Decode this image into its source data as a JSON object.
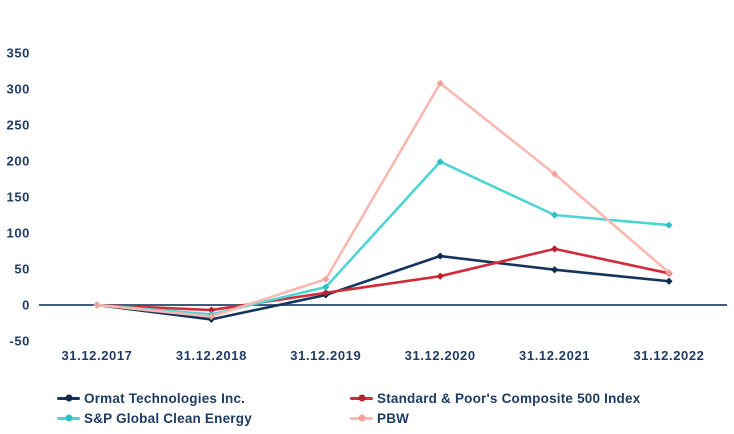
{
  "chart_data": {
    "type": "line",
    "title": "",
    "xlabel": "",
    "ylabel": "",
    "categories": [
      "31.12.2017",
      "31.12.2018",
      "31.12.2019",
      "31.12.2020",
      "31.12.2021",
      "31.12.2022"
    ],
    "y_ticks": [
      350,
      300,
      250,
      200,
      150,
      100,
      50,
      0,
      -50
    ],
    "ylim": [
      -50,
      350
    ],
    "grid": false,
    "legend_position": "bottom",
    "axis_color": "#3f5e7e",
    "label_color": "#1e3c64",
    "background_color": "#ffffff",
    "series": [
      {
        "name": "Ormat Technologies Inc.",
        "color": "#16355c",
        "marker_color": "#0f2a4c",
        "values": [
          0,
          -20,
          14,
          68,
          49,
          33
        ]
      },
      {
        "name": "Standard & Poor's Composite 500 Index",
        "color": "#d22b39",
        "marker_color": "#b81e2d",
        "values": [
          0,
          -7,
          17,
          40,
          78,
          44
        ]
      },
      {
        "name": "S&P Global Clean Energy",
        "color": "#4ed4d2",
        "marker_color": "#2fc0c0",
        "values": [
          0,
          -13,
          25,
          199,
          125,
          111
        ]
      },
      {
        "name": "PBW",
        "color": "#f8b9b2",
        "marker_color": "#f2a49b",
        "values": [
          0,
          -16,
          36,
          308,
          182,
          45
        ]
      }
    ]
  }
}
